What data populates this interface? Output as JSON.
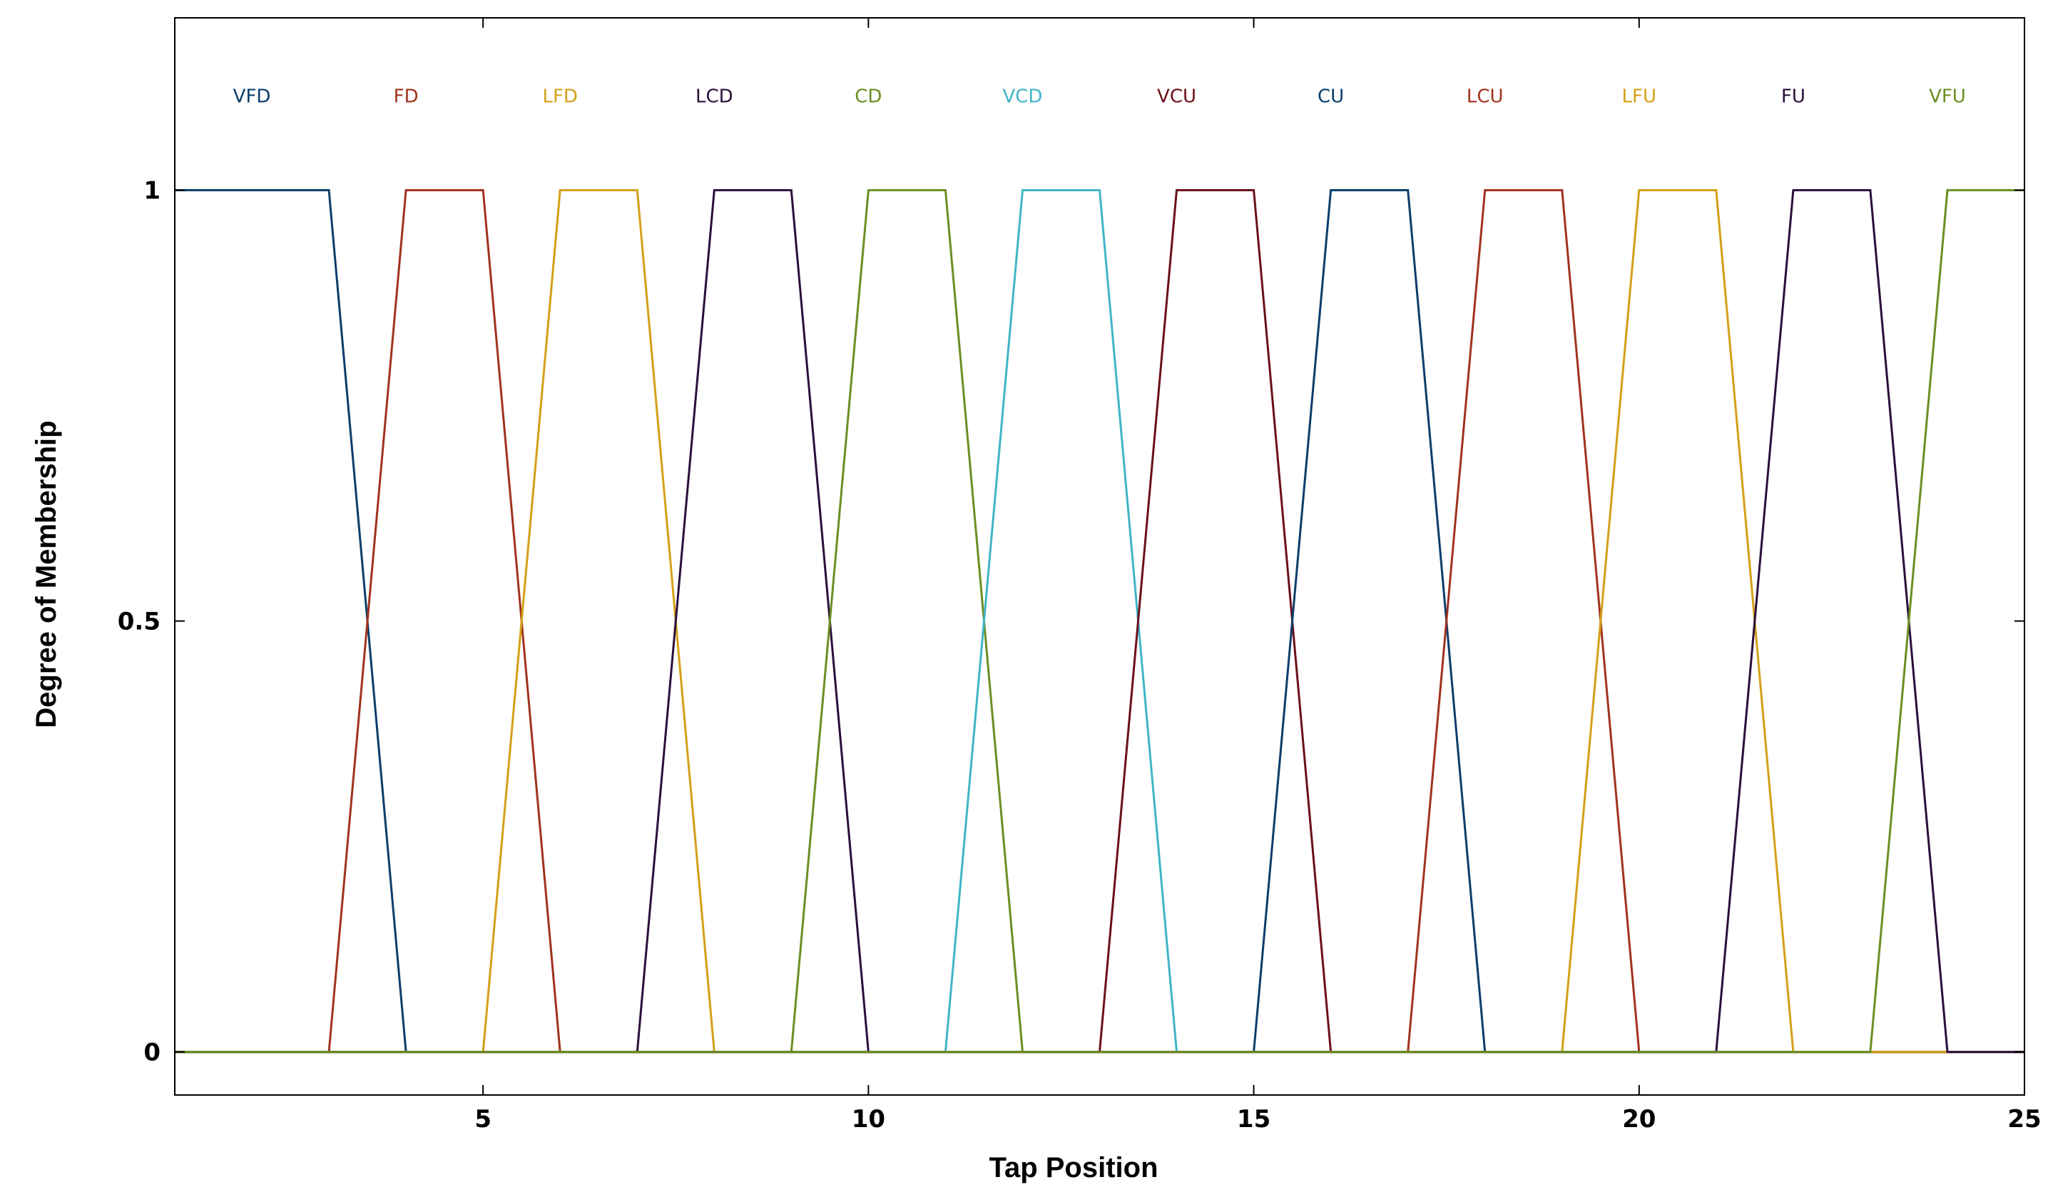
{
  "chart_data": {
    "type": "line",
    "title": "",
    "xlabel": "Tap Position",
    "ylabel": "Degree of Membership",
    "xlim": [
      1,
      25
    ],
    "ylim": [
      -0.05,
      1.2
    ],
    "xticks": [
      5,
      10,
      15,
      20,
      25
    ],
    "yticks": [
      0,
      0.5,
      1
    ],
    "xtick_labels": [
      "5",
      "10",
      "15",
      "20",
      "25"
    ],
    "ytick_labels": [
      "0",
      "0.5",
      "1"
    ],
    "grid": false,
    "series": [
      {
        "name": "VFD",
        "color": "#0b3d6b",
        "x": [
          1,
          3,
          4,
          25
        ],
        "y": [
          1,
          1,
          0,
          0
        ]
      },
      {
        "name": "FD",
        "color": "#a0321e",
        "x": [
          1,
          3,
          4,
          5,
          6,
          25
        ],
        "y": [
          0,
          0,
          1,
          1,
          0,
          0
        ]
      },
      {
        "name": "LFD",
        "color": "#d4a017",
        "x": [
          1,
          5,
          6,
          7,
          8,
          25
        ],
        "y": [
          0,
          0,
          1,
          1,
          0,
          0
        ]
      },
      {
        "name": "LCD",
        "color": "#2a0f3a",
        "x": [
          1,
          7,
          8,
          9,
          10,
          25
        ],
        "y": [
          0,
          0,
          1,
          1,
          0,
          0
        ]
      },
      {
        "name": "CD",
        "color": "#6b8e23",
        "x": [
          1,
          9,
          10,
          11,
          12,
          25
        ],
        "y": [
          0,
          0,
          1,
          1,
          0,
          0
        ]
      },
      {
        "name": "VCD",
        "color": "#3fb5c6",
        "x": [
          1,
          11,
          12,
          13,
          14,
          25
        ],
        "y": [
          0,
          0,
          1,
          1,
          0,
          0
        ]
      },
      {
        "name": "VCU",
        "color": "#6a0f1a",
        "x": [
          1,
          13,
          14,
          15,
          16,
          25
        ],
        "y": [
          0,
          0,
          1,
          1,
          0,
          0
        ]
      },
      {
        "name": "CU",
        "color": "#0b3d6b",
        "x": [
          1,
          15,
          16,
          17,
          18,
          25
        ],
        "y": [
          0,
          0,
          1,
          1,
          0,
          0
        ]
      },
      {
        "name": "LCU",
        "color": "#a0321e",
        "x": [
          1,
          17,
          18,
          19,
          20,
          25
        ],
        "y": [
          0,
          0,
          1,
          1,
          0,
          0
        ]
      },
      {
        "name": "LFU",
        "color": "#d4a017",
        "x": [
          1,
          19,
          20,
          21,
          22,
          25
        ],
        "y": [
          0,
          0,
          1,
          1,
          0,
          0
        ]
      },
      {
        "name": "FU",
        "color": "#2a0f3a",
        "x": [
          1,
          21,
          22,
          23,
          24,
          25
        ],
        "y": [
          0,
          0,
          1,
          1,
          0,
          0
        ]
      },
      {
        "name": "VFU",
        "color": "#6b8e23",
        "x": [
          1,
          23,
          24,
          25
        ],
        "y": [
          0,
          0,
          1,
          1
        ]
      }
    ],
    "label_positions": [
      2,
      4,
      6,
      8,
      10,
      12,
      14,
      16,
      18,
      20,
      22,
      24
    ]
  }
}
